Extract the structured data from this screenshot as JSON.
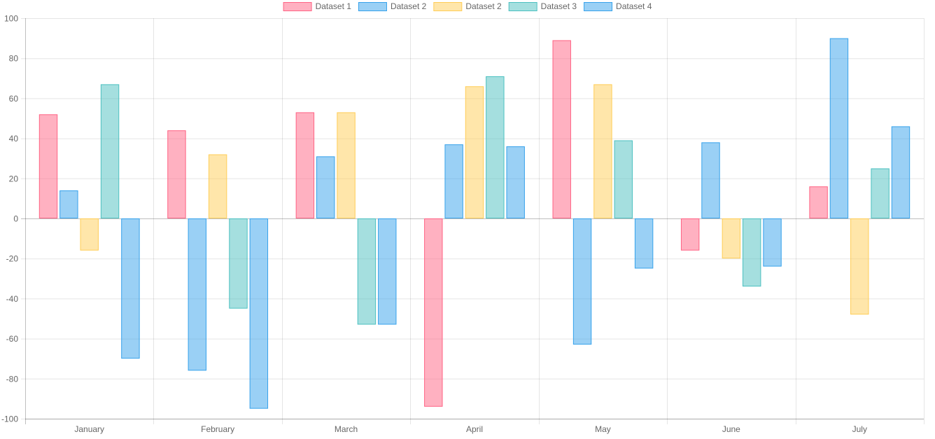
{
  "chart_data": {
    "type": "bar",
    "title": "",
    "xlabel": "",
    "ylabel": "",
    "categories": [
      "January",
      "February",
      "March",
      "April",
      "May",
      "June",
      "July"
    ],
    "ylim": [
      -100,
      100
    ],
    "ytick_step": 20,
    "grid": true,
    "legend_position": "top-center",
    "series": [
      {
        "name": "Dataset 1",
        "fill": "rgba(255,99,132,0.5)",
        "stroke": "#ff6384",
        "values": [
          52,
          44,
          53,
          -94,
          89,
          -16,
          16
        ]
      },
      {
        "name": "Dataset 2",
        "fill": "rgba(54,162,235,0.5)",
        "stroke": "#36a2eb",
        "values": [
          14,
          -76,
          31,
          37,
          -63,
          38,
          90
        ]
      },
      {
        "name": "Dataset 2",
        "fill": "rgba(255,205,86,0.5)",
        "stroke": "#ffcd56",
        "values": [
          -16,
          32,
          53,
          66,
          67,
          -20,
          -48
        ]
      },
      {
        "name": "Dataset 3",
        "fill": "rgba(75,192,192,0.5)",
        "stroke": "#4bc0c0",
        "values": [
          67,
          -45,
          -53,
          71,
          39,
          -34,
          25
        ]
      },
      {
        "name": "Dataset 4",
        "fill": "rgba(54,162,235,0.5)",
        "stroke": "#36a2eb",
        "values": [
          -70,
          -95,
          -53,
          36,
          -25,
          -24,
          46
        ]
      }
    ]
  }
}
